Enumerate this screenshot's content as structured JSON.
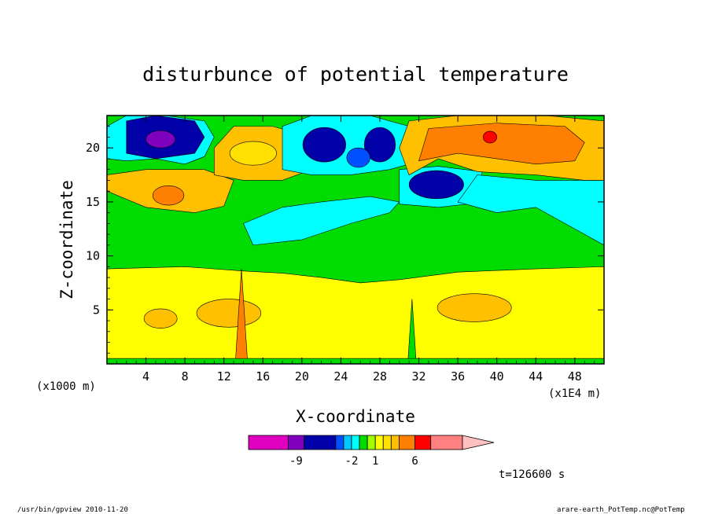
{
  "chart_data": {
    "type": "heatmap",
    "title": "disturbunce of potential temperature",
    "xlabel": "X-coordinate",
    "ylabel": "Z-coordinate",
    "x_unit_left": "(x1000 m)",
    "x_unit_right": "(x1E4 m)",
    "xlim": [
      0,
      51
    ],
    "ylim": [
      0,
      23
    ],
    "xticks": [
      4,
      8,
      12,
      16,
      20,
      24,
      28,
      32,
      36,
      40,
      44,
      48
    ],
    "yticks": [
      5,
      10,
      15,
      20
    ],
    "grid": false,
    "colorbar": {
      "tick_labels": [
        {
          "label": "-9",
          "value": -9
        },
        {
          "label": "-2",
          "value": -2
        },
        {
          "label": "1",
          "value": 1
        },
        {
          "label": "6",
          "value": 6
        }
      ],
      "levels": [
        {
          "range": [
            -15,
            -10
          ],
          "color": "#e000c0"
        },
        {
          "range": [
            -10,
            -8
          ],
          "color": "#8000c0"
        },
        {
          "range": [
            -8,
            -4
          ],
          "color": "#0000a8"
        },
        {
          "range": [
            -4,
            -3
          ],
          "color": "#0050ff"
        },
        {
          "range": [
            -3,
            -2
          ],
          "color": "#00c8ff"
        },
        {
          "range": [
            -2,
            -1
          ],
          "color": "#00ffff"
        },
        {
          "range": [
            -1,
            0
          ],
          "color": "#00dc00"
        },
        {
          "range": [
            0,
            1
          ],
          "color": "#a0ff00"
        },
        {
          "range": [
            1,
            2
          ],
          "color": "#ffff00"
        },
        {
          "range": [
            2,
            3
          ],
          "color": "#ffe000"
        },
        {
          "range": [
            3,
            4
          ],
          "color": "#ffc000"
        },
        {
          "range": [
            4,
            6
          ],
          "color": "#ff8000"
        },
        {
          "range": [
            6,
            8
          ],
          "color": "#ff0000"
        },
        {
          "range": [
            8,
            12
          ],
          "color": "#ff8080"
        }
      ],
      "extend": "max",
      "extend_color": "#ffc0c0"
    },
    "regions": [
      {
        "level": "yellow (1 to 2)",
        "x": [
          0,
          51
        ],
        "z": [
          0.5,
          9
        ]
      },
      {
        "level": "green (-1 to 0)",
        "x": [
          0,
          51
        ],
        "z": [
          9,
          15
        ]
      },
      {
        "level": "light orange (3 to 4)",
        "x": [
          2,
          10
        ],
        "z": [
          14.5,
          18
        ]
      },
      {
        "level": "orange (4 to 6)",
        "x": [
          5,
          7.5
        ],
        "z": [
          14.8,
          16.5
        ]
      },
      {
        "level": "dark blue (-8 to -4)",
        "x": [
          2,
          10
        ],
        "z": [
          19,
          22.5
        ]
      },
      {
        "level": "purple (-10 to -8)",
        "x": [
          4,
          7
        ],
        "z": [
          20,
          21.5
        ]
      },
      {
        "level": "light orange (3 to 4)",
        "x": [
          11,
          21
        ],
        "z": [
          17.5,
          22
        ]
      },
      {
        "level": "dark blue (-8 to -4)",
        "x": [
          19,
          30
        ],
        "z": [
          18,
          22
        ]
      },
      {
        "level": "dark blue (-8 to -4)",
        "x": [
          30.5,
          37
        ],
        "z": [
          15.5,
          18
        ]
      },
      {
        "level": "orange (4 to 6)",
        "x": [
          31,
          50
        ],
        "z": [
          17.5,
          22
        ]
      },
      {
        "level": "red (6 to 8)",
        "x": [
          38.5,
          40
        ],
        "z": [
          20.5,
          21.5
        ]
      },
      {
        "level": "cyan (-2 to -1)",
        "x": [
          36,
          51
        ],
        "z": [
          11,
          17
        ]
      },
      {
        "level": "light orange (3 to 4)",
        "x": [
          31,
          38
        ],
        "z": [
          4.5,
          7
        ]
      },
      {
        "level": "light orange (3 to 4)",
        "x": [
          3,
          6
        ],
        "z": [
          3.5,
          5.5
        ]
      },
      {
        "level": "light orange (3 to 4)",
        "x": [
          8,
          16
        ],
        "z": [
          3,
          6.5
        ]
      }
    ]
  },
  "footer": {
    "time_label": "t=126600 s",
    "left_note": "/usr/bin/gpview  2010-11-20",
    "right_note": "arare-earth_PotTemp.nc@PotTemp"
  }
}
